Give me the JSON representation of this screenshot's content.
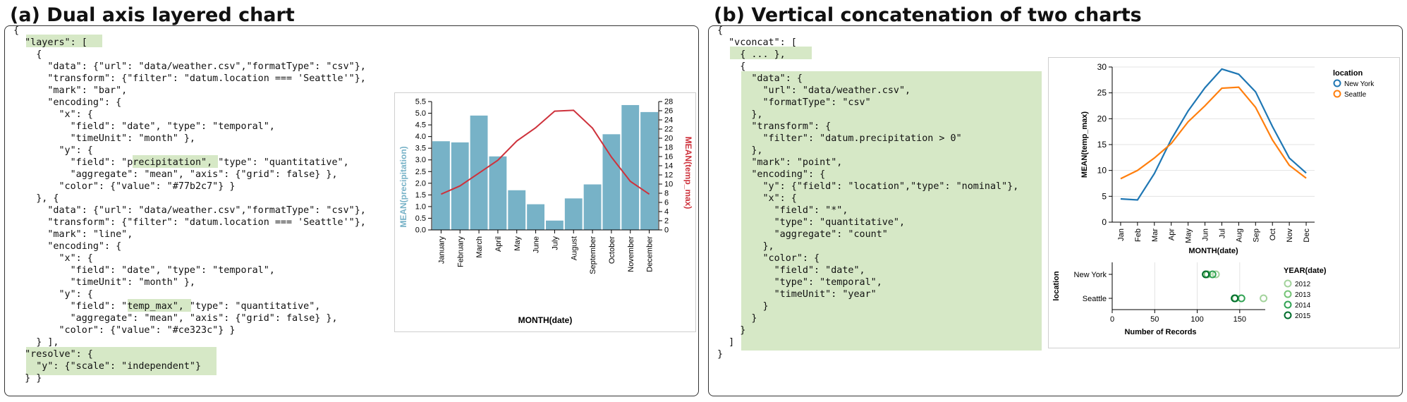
{
  "panels": {
    "a_title": "(a) Dual axis layered chart",
    "b_title": "(b) Vertical concatenation of two charts"
  },
  "code_a": [
    "{",
    "  \"layers\": [",
    "    {",
    "      \"data\": {\"url\": \"data/weather.csv\",\"formatType\": \"csv\"},",
    "      \"transform\": {\"filter\": \"datum.location === 'Seattle'\"},",
    "      \"mark\": \"bar\",",
    "      \"encoding\": {",
    "        \"x\": {",
    "          \"field\": \"date\", \"type\": \"temporal\",",
    "          \"timeUnit\": \"month\" },",
    "        \"y\": {",
    "          \"field\": \"precipitation\", \"type\": \"quantitative\",",
    "          \"aggregate\": \"mean\", \"axis\": {\"grid\": false} },",
    "        \"color\": {\"value\": \"#77b2c7\"} }",
    "    }, {",
    "      \"data\": {\"url\": \"data/weather.csv\",\"formatType\": \"csv\"},",
    "      \"transform\": {\"filter\": \"datum.location === 'Seattle'\"},",
    "      \"mark\": \"line\",",
    "      \"encoding\": {",
    "        \"x\": {",
    "          \"field\": \"date\", \"type\": \"temporal\",",
    "          \"timeUnit\": \"month\" },",
    "        \"y\": {",
    "          \"field\": \"temp_max\", \"type\": \"quantitative\",",
    "          \"aggregate\": \"mean\", \"axis\": {\"grid\": false} },",
    "        \"color\": {\"value\": \"#ce323c\"} }",
    "    } ],",
    "  \"resolve\": {",
    "    \"y\": {\"scale\": \"independent\"}",
    "  } }"
  ],
  "code_b": [
    "{",
    "  \"vconcat\": [",
    "    { ... },",
    "    {",
    "      \"data\": {",
    "        \"url\": \"data/weather.csv\",",
    "        \"formatType\": \"csv\"",
    "      },",
    "      \"transform\": {",
    "        \"filter\": \"datum.precipitation > 0\"",
    "      },",
    "      \"mark\": \"point\",",
    "      \"encoding\": {",
    "        \"y\": {\"field\": \"location\",\"type\": \"nominal\"},",
    "        \"x\": {",
    "          \"field\": \"*\",",
    "          \"type\": \"quantitative\",",
    "          \"aggregate\": \"count\"",
    "        },",
    "        \"color\": {",
    "          \"field\": \"date\",",
    "          \"type\": \"temporal\",",
    "          \"timeUnit\": \"year\"",
    "        }",
    "      }",
    "    }",
    "  ]",
    "}"
  ],
  "colors": {
    "highlight": "#d6e8c6",
    "bar": "#77b2c7",
    "temp_line": "#ce323c",
    "new_york": "#1f77b4",
    "seattle": "#ff7f0e"
  },
  "chart_data": [
    {
      "type": "bar",
      "categories": [
        "January",
        "February",
        "March",
        "April",
        "May",
        "June",
        "July",
        "August",
        "September",
        "October",
        "November",
        "December"
      ],
      "series": [
        {
          "name": "precipitation",
          "values": [
            3.8,
            3.75,
            4.9,
            3.15,
            1.7,
            1.1,
            0.4,
            1.35,
            1.95,
            4.1,
            5.35,
            5.05
          ]
        },
        {
          "name": "temp_max",
          "values": [
            7.8,
            9.6,
            12.4,
            15.2,
            19.4,
            22.3,
            25.9,
            26.1,
            22.2,
            15.9,
            10.6,
            7.8
          ]
        }
      ],
      "xlabel": "MONTH(date)",
      "ylabel": "MEAN(precipitation)",
      "y2label": "MEAN(temp_max)",
      "ylim": [
        0,
        5.5
      ],
      "y2lim": [
        0,
        28
      ],
      "y_ticks": [
        "0.0",
        "0.5",
        "1.0",
        "1.5",
        "2.0",
        "2.5",
        "3.0",
        "3.5",
        "4.0",
        "4.5",
        "5.0",
        "5.5"
      ],
      "y2_ticks": [
        "0",
        "2",
        "4",
        "6",
        "8",
        "10",
        "12",
        "14",
        "16",
        "18",
        "20",
        "22",
        "24",
        "26",
        "28"
      ],
      "grid": false
    },
    {
      "type": "line",
      "categories": [
        "Jan",
        "Feb",
        "Mar",
        "Apr",
        "May",
        "Jun",
        "Jul",
        "Aug",
        "Sep",
        "Oct",
        "Nov",
        "Dec"
      ],
      "series": [
        {
          "name": "New York",
          "values": [
            4.5,
            4.3,
            9.4,
            16.0,
            21.5,
            26.0,
            29.6,
            28.6,
            25.2,
            18.5,
            12.4,
            9.5
          ]
        },
        {
          "name": "Seattle",
          "values": [
            8.4,
            10.0,
            12.4,
            15.2,
            19.4,
            22.5,
            25.9,
            26.1,
            22.2,
            15.9,
            11.0,
            8.5
          ]
        }
      ],
      "xlabel": "MONTH(date)",
      "ylabel": "MEAN(temp_max)",
      "ylim": [
        0,
        30
      ],
      "y_ticks": [
        "0",
        "5",
        "10",
        "15",
        "20",
        "25",
        "30"
      ],
      "legend_title": "location",
      "legend_position": "top-right",
      "grid": true
    },
    {
      "type": "scatter",
      "categories": [
        "New York",
        "Seattle"
      ],
      "series": [
        {
          "name": "2012",
          "values": [
            122,
            178
          ]
        },
        {
          "name": "2013",
          "values": [
            112,
            145
          ]
        },
        {
          "name": "2014",
          "values": [
            118,
            152
          ]
        },
        {
          "name": "2015",
          "values": [
            110,
            144
          ]
        }
      ],
      "xlabel": "Number of Records",
      "ylabel": "location",
      "xlim": [
        0,
        180
      ],
      "x_ticks": [
        "0",
        "50",
        "100",
        "150"
      ],
      "legend_title": "YEAR(date)",
      "legend_position": "right",
      "series_colors": [
        "#a3d39c",
        "#74c476",
        "#31a354",
        "#006d2c"
      ],
      "grid": true
    }
  ]
}
